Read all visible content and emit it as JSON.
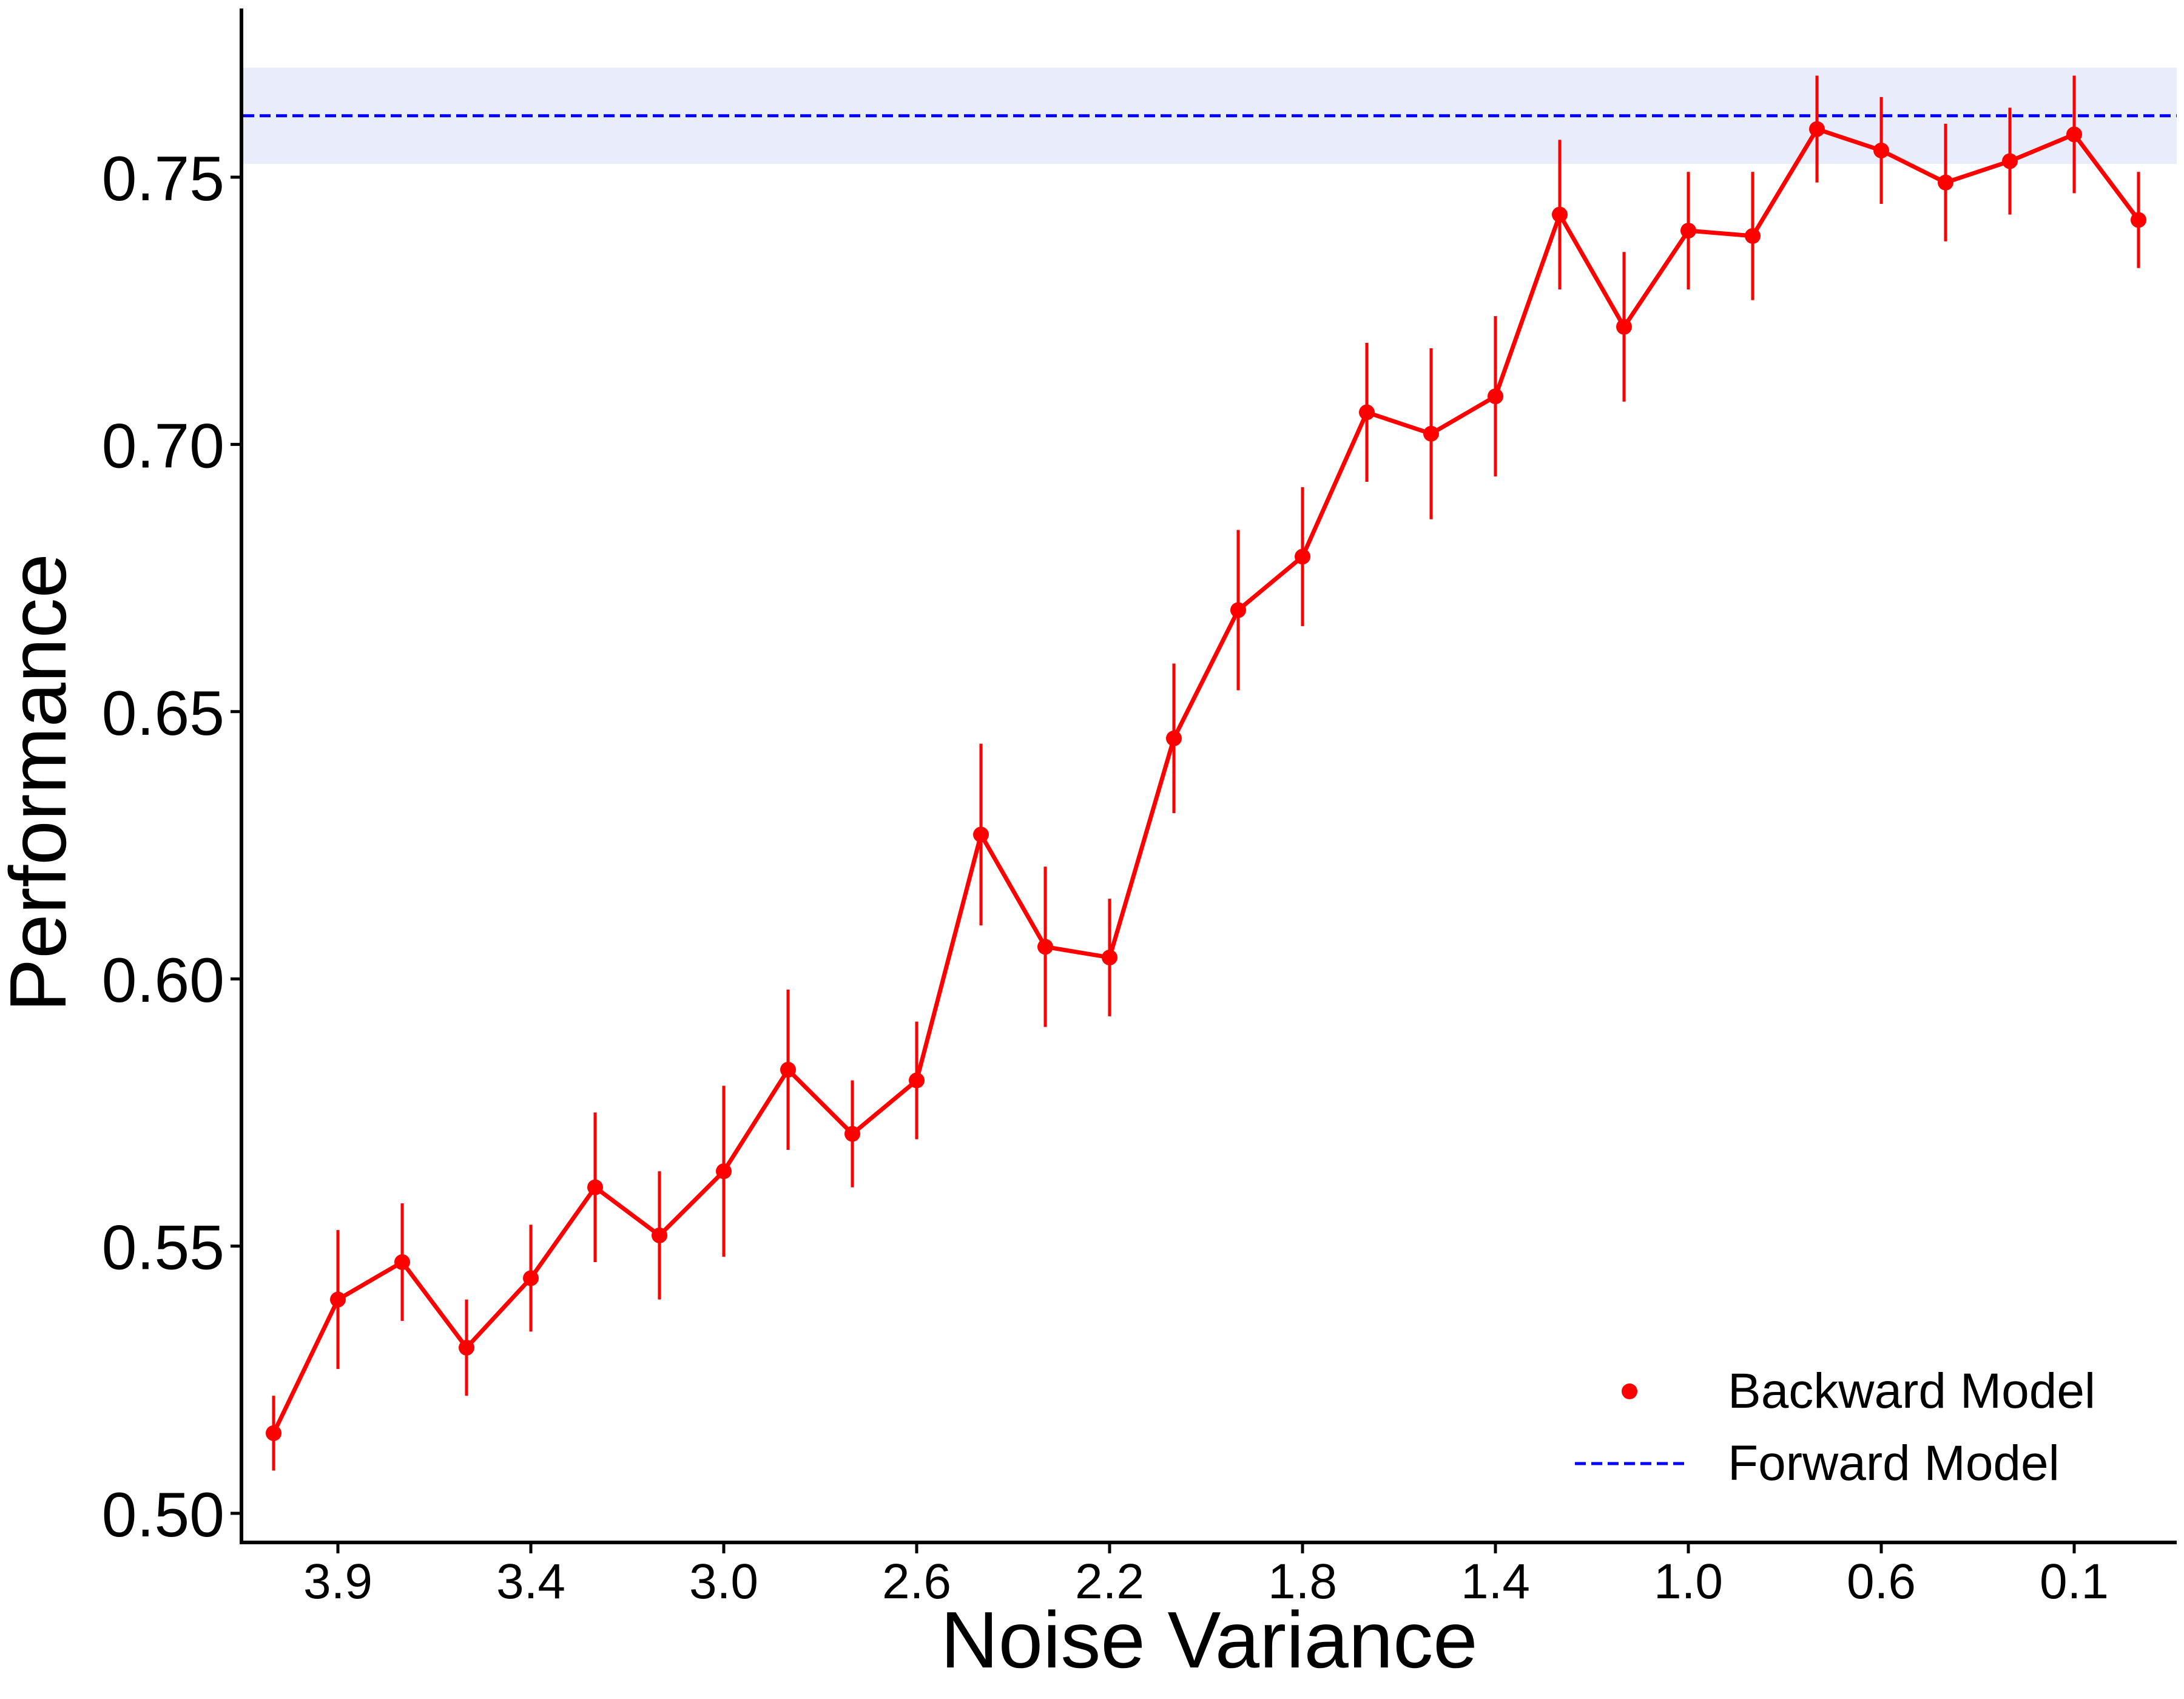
{
  "chart_data": {
    "type": "line",
    "title": "",
    "xlabel": "Noise Variance",
    "ylabel": "Performance",
    "x_tick_labels": [
      "3.9",
      "3.4",
      "3.0",
      "2.6",
      "2.2",
      "1.8",
      "1.4",
      "1.0",
      "0.6",
      "0.1"
    ],
    "y_ticks": [
      0.5,
      0.55,
      0.6,
      0.65,
      0.7,
      0.75
    ],
    "y_tick_labels": [
      "0.50",
      "0.55",
      "0.60",
      "0.65",
      "0.70",
      "0.75"
    ],
    "ylim": [
      0.495,
      0.7815
    ],
    "grid": false,
    "legend_position": "lower-right",
    "series": [
      {
        "name": "Backward Model",
        "color": "#ff0000",
        "style": "line-with-markers-and-error-bars",
        "values": [
          0.515,
          0.54,
          0.547,
          0.531,
          0.544,
          0.561,
          0.552,
          0.564,
          0.583,
          0.571,
          0.581,
          0.627,
          0.606,
          0.604,
          0.645,
          0.669,
          0.679,
          0.706,
          0.702,
          0.709,
          0.743,
          0.722,
          0.74,
          0.739,
          0.759,
          0.755,
          0.749,
          0.753,
          0.758,
          0.742
        ],
        "errors": [
          0.007,
          0.013,
          0.011,
          0.009,
          0.01,
          0.014,
          0.012,
          0.016,
          0.015,
          0.01,
          0.011,
          0.017,
          0.015,
          0.011,
          0.014,
          0.015,
          0.013,
          0.013,
          0.016,
          0.015,
          0.014,
          0.014,
          0.011,
          0.012,
          0.01,
          0.01,
          0.011,
          0.01,
          0.011,
          0.009
        ]
      },
      {
        "name": "Forward Model",
        "color": "#0000ff",
        "style": "dashed-horizontal-line",
        "value": 0.7615,
        "band": [
          0.7525,
          0.7705
        ],
        "band_color": "#e9edfb"
      }
    ]
  }
}
